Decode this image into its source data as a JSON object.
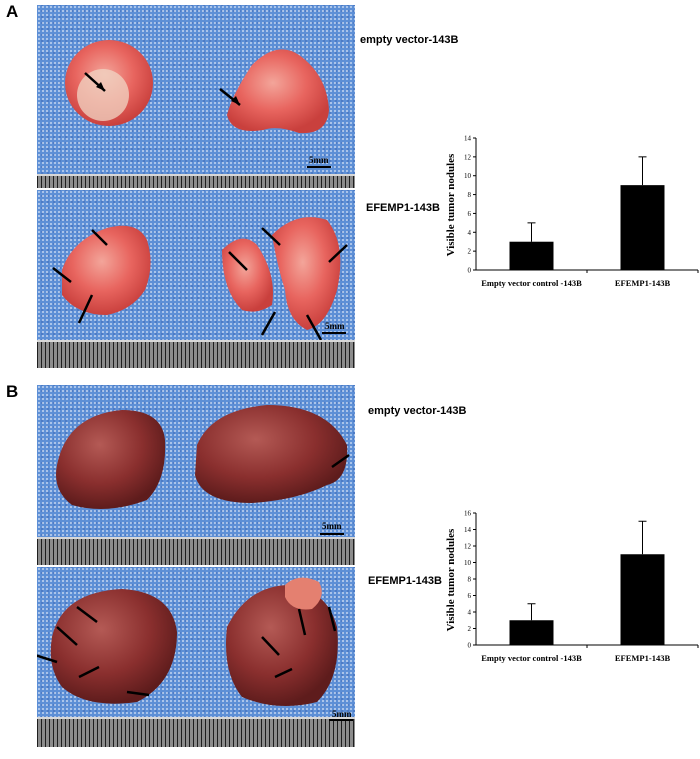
{
  "panels": [
    {
      "letter": "A",
      "top_label": "empty vector-143B",
      "bottom_label": "EFEMP1-143B",
      "scale": "5mm"
    },
    {
      "letter": "B",
      "top_label": "empty vector-143B",
      "bottom_label": "EFEMP1-143B",
      "scale": "5mm"
    }
  ],
  "colors": {
    "cloth": "#5d8fd6",
    "lung_tissue": "#e8655f",
    "liver_tissue": "#8a2f2e",
    "bar": "#000000"
  },
  "chart_data": [
    {
      "type": "bar",
      "categories": [
        "Empty vector control -143B",
        "EFEMP1-143B"
      ],
      "values": [
        3,
        9
      ],
      "errors": [
        2,
        3
      ],
      "ylabel": "Visible tumor nodules",
      "ylim": [
        0,
        14
      ],
      "yticks": [
        0,
        2,
        4,
        6,
        8,
        10,
        12,
        14
      ],
      "grid": false
    },
    {
      "type": "bar",
      "categories": [
        "Empty vector control -143B",
        "EFEMP1-143B"
      ],
      "values": [
        3,
        11
      ],
      "errors": [
        2,
        4
      ],
      "ylabel": "Visible tumor nodules",
      "ylim": [
        0,
        16
      ],
      "yticks": [
        0,
        2,
        4,
        6,
        8,
        10,
        12,
        14,
        16
      ],
      "grid": false
    }
  ]
}
